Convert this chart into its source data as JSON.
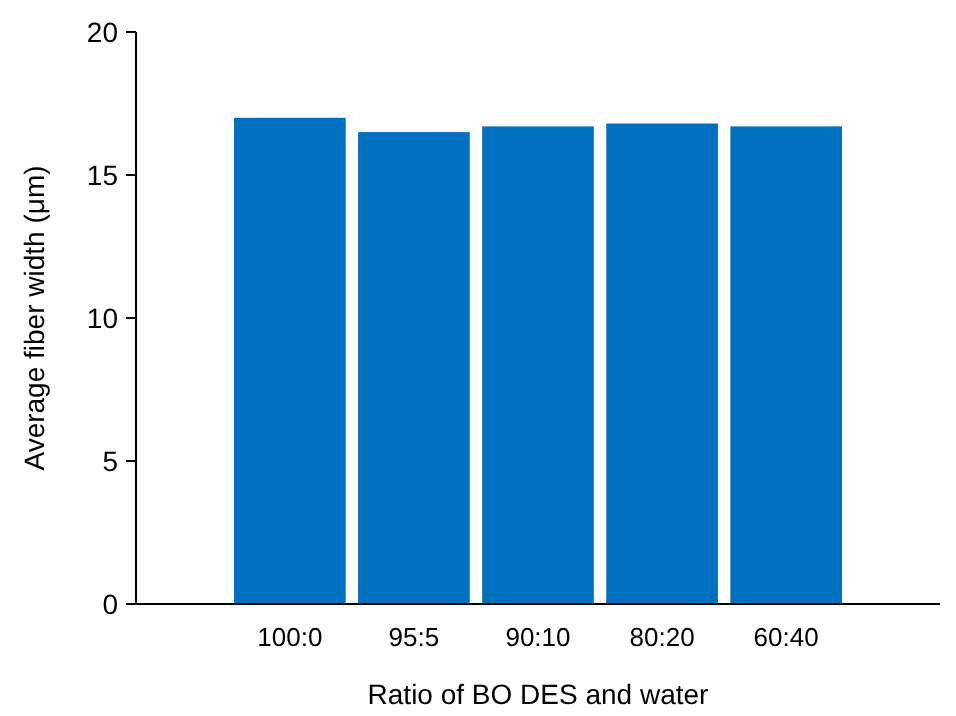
{
  "chart_data": {
    "type": "bar",
    "xlabel": "Ratio of BO DES and water",
    "ylabel": "Average fiber width (μm)",
    "categories": [
      "100:0",
      "95:5",
      "90:10",
      "80:20",
      "60:40"
    ],
    "values": [
      17.0,
      16.5,
      16.7,
      16.8,
      16.7
    ],
    "color": "#0070c0",
    "ylim": [
      0,
      20
    ],
    "yticks": [
      0,
      5,
      10,
      15,
      20
    ],
    "grid": false
  }
}
